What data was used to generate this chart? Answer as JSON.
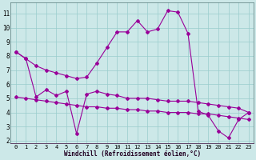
{
  "xlabel": "Windchill (Refroidissement éolien,°C)",
  "background_color": "#cce8e8",
  "grid_color": "#99cccc",
  "line_color": "#990099",
  "hours": [
    0,
    1,
    2,
    3,
    4,
    5,
    6,
    7,
    8,
    9,
    10,
    11,
    12,
    13,
    14,
    15,
    16,
    17,
    18,
    19,
    20,
    21,
    22,
    23
  ],
  "temp": [
    8.3,
    7.8,
    7.3,
    7.0,
    6.8,
    6.6,
    6.4,
    6.5,
    7.5,
    8.6,
    9.7,
    9.7,
    10.5,
    9.7,
    9.9,
    11.2,
    11.1,
    9.6,
    4.1,
    3.8,
    2.7,
    2.2,
    3.5,
    4.0
  ],
  "windchill": [
    8.3,
    7.8,
    5.1,
    5.6,
    5.2,
    5.5,
    2.5,
    5.3,
    5.5,
    5.3,
    5.2,
    5.0,
    5.0,
    5.0,
    4.9,
    4.8,
    4.8,
    4.8,
    4.7,
    4.6,
    4.5,
    4.4,
    4.3,
    4.0
  ],
  "straight": [
    5.1,
    5.0,
    4.9,
    4.8,
    4.7,
    4.6,
    4.5,
    4.4,
    4.4,
    4.3,
    4.3,
    4.2,
    4.2,
    4.1,
    4.1,
    4.0,
    4.0,
    4.0,
    3.9,
    3.9,
    3.8,
    3.7,
    3.6,
    3.5
  ],
  "ylim_min": 1.8,
  "ylim_max": 11.8,
  "yticks": [
    2,
    3,
    4,
    5,
    6,
    7,
    8,
    9,
    10,
    11
  ],
  "xticks": [
    0,
    1,
    2,
    3,
    4,
    5,
    6,
    7,
    8,
    9,
    10,
    11,
    12,
    13,
    14,
    15,
    16,
    17,
    18,
    19,
    20,
    21,
    22,
    23
  ],
  "tick_fontsize": 5.0,
  "xlabel_fontsize": 5.5,
  "lw": 0.8,
  "ms": 2.0
}
